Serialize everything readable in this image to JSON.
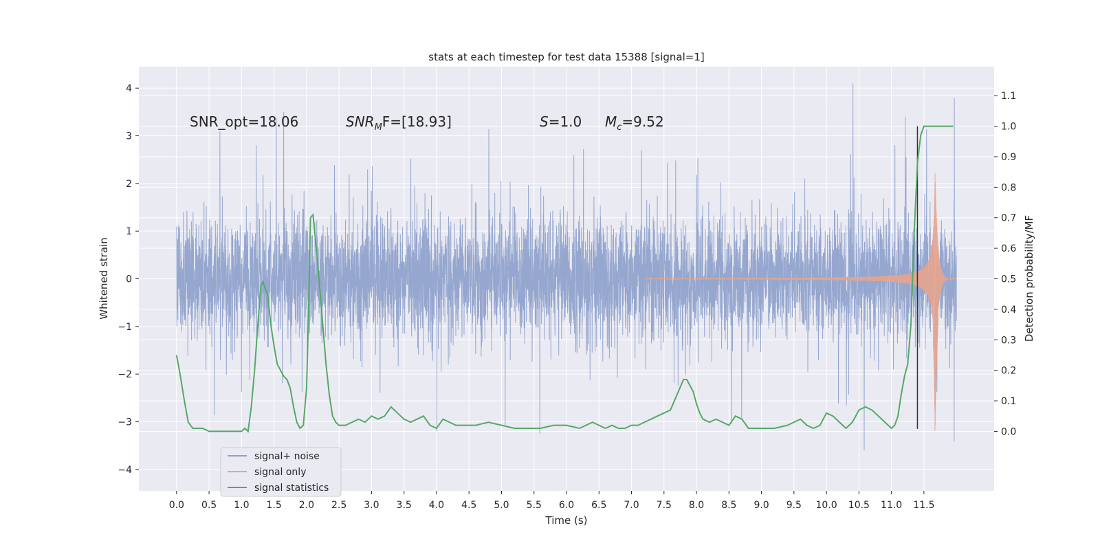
{
  "chart_data": {
    "type": "line",
    "title": "stats at each timestep for test data 15388 [signal=1]",
    "xlabel": "Time (s)",
    "ylabel_left": "Whitened strain",
    "ylabel_right": "Detection probability/MF",
    "xlim": [
      -0.58,
      12.58
    ],
    "ylim_left": [
      -4.45,
      4.45
    ],
    "ylim_right": [
      -0.195,
      1.195
    ],
    "x_ticks": [
      0.0,
      0.5,
      1.0,
      1.5,
      2.0,
      2.5,
      3.0,
      3.5,
      4.0,
      4.5,
      5.0,
      5.5,
      6.0,
      6.5,
      7.0,
      7.5,
      8.0,
      8.5,
      9.0,
      9.5,
      10.0,
      10.5,
      11.0,
      11.5
    ],
    "x_tick_labels": [
      "0.0",
      "0.5",
      "1.0",
      "1.5",
      "2.0",
      "2.5",
      "3.0",
      "3.5",
      "4.0",
      "4.5",
      "5.0",
      "5.5",
      "6.0",
      "6.5",
      "7.0",
      "7.5",
      "8.0",
      "8.5",
      "9.0",
      "9.5",
      "10.0",
      "10.5",
      "11.0",
      "11.5"
    ],
    "y_left_ticks": [
      -4,
      -3,
      -2,
      -1,
      0,
      1,
      2,
      3,
      4
    ],
    "y_left_tick_labels": [
      "−4",
      "−3",
      "−2",
      "−1",
      "0",
      "1",
      "2",
      "3",
      "4"
    ],
    "y_right_ticks": [
      0.0,
      0.1,
      0.2,
      0.3,
      0.4,
      0.5,
      0.6,
      0.7,
      0.8,
      0.9,
      1.0,
      1.1
    ],
    "y_right_tick_labels": [
      "0.0",
      "0.1",
      "0.2",
      "0.3",
      "0.4",
      "0.5",
      "0.6",
      "0.7",
      "0.8",
      "0.9",
      "1.0",
      "1.1"
    ],
    "grid": true,
    "legend_placement": "lower-left",
    "annotations": {
      "snr_opt": "SNR_opt=18.06",
      "snr_mf_main": "SNR",
      "snr_mf_sub": "M",
      "snr_mf_rest": "F=[18.93]",
      "s_var": "S",
      "s_rest": "=1.0",
      "mc_main": "M",
      "mc_sub": "c",
      "mc_rest": "=9.52"
    },
    "merger_marker_x": 11.4,
    "series": [
      {
        "name": "signal+ noise",
        "color": "#8da0cb",
        "t_range": [
          0.0,
          12.0
        ],
        "envelope_sigma": 0.62
      },
      {
        "name": "signal only",
        "color": "#e5a48d",
        "chirp": {
          "t_start": 7.2,
          "t_peak": 11.67,
          "t_end": 11.72,
          "peak_amp": 2.3,
          "min_amp": -3.4,
          "ringdown_end": 12.0
        }
      },
      {
        "name": "signal statistics",
        "color": "#55a868",
        "x": [
          0.0,
          0.06,
          0.12,
          0.18,
          0.25,
          0.3,
          0.4,
          0.5,
          0.6,
          0.7,
          0.8,
          0.9,
          1.0,
          1.05,
          1.1,
          1.15,
          1.2,
          1.25,
          1.3,
          1.33,
          1.36,
          1.4,
          1.45,
          1.5,
          1.55,
          1.6,
          1.65,
          1.7,
          1.75,
          1.8,
          1.85,
          1.9,
          1.95,
          2.0,
          2.03,
          2.06,
          2.1,
          2.15,
          2.2,
          2.25,
          2.3,
          2.35,
          2.4,
          2.45,
          2.5,
          2.6,
          2.7,
          2.8,
          2.9,
          3.0,
          3.1,
          3.2,
          3.3,
          3.4,
          3.5,
          3.6,
          3.7,
          3.8,
          3.9,
          4.0,
          4.1,
          4.2,
          4.3,
          4.4,
          4.6,
          4.8,
          5.0,
          5.2,
          5.4,
          5.6,
          5.8,
          6.0,
          6.2,
          6.3,
          6.4,
          6.5,
          6.6,
          6.7,
          6.8,
          6.9,
          7.0,
          7.1,
          7.2,
          7.3,
          7.4,
          7.5,
          7.6,
          7.7,
          7.8,
          7.85,
          7.9,
          7.95,
          8.0,
          8.05,
          8.1,
          8.2,
          8.3,
          8.4,
          8.5,
          8.6,
          8.7,
          8.8,
          8.9,
          9.0,
          9.2,
          9.4,
          9.5,
          9.6,
          9.7,
          9.8,
          9.9,
          10.0,
          10.1,
          10.2,
          10.3,
          10.4,
          10.5,
          10.6,
          10.7,
          10.8,
          10.9,
          11.0,
          11.05,
          11.1,
          11.15,
          11.2,
          11.25,
          11.3,
          11.35,
          11.4,
          11.45,
          11.5,
          11.6,
          11.8,
          11.95
        ],
        "y": [
          0.25,
          0.18,
          0.1,
          0.03,
          0.01,
          0.01,
          0.01,
          0.0,
          0.0,
          0.0,
          0.0,
          0.0,
          0.0,
          0.01,
          0.0,
          0.08,
          0.2,
          0.35,
          0.48,
          0.49,
          0.47,
          0.45,
          0.35,
          0.28,
          0.22,
          0.2,
          0.18,
          0.17,
          0.14,
          0.08,
          0.03,
          0.01,
          0.02,
          0.14,
          0.38,
          0.7,
          0.71,
          0.6,
          0.48,
          0.35,
          0.22,
          0.12,
          0.05,
          0.03,
          0.02,
          0.02,
          0.03,
          0.04,
          0.03,
          0.05,
          0.04,
          0.05,
          0.08,
          0.06,
          0.04,
          0.03,
          0.04,
          0.05,
          0.02,
          0.01,
          0.04,
          0.03,
          0.02,
          0.02,
          0.02,
          0.03,
          0.02,
          0.01,
          0.01,
          0.01,
          0.02,
          0.02,
          0.01,
          0.02,
          0.03,
          0.02,
          0.01,
          0.02,
          0.01,
          0.01,
          0.02,
          0.02,
          0.03,
          0.04,
          0.05,
          0.06,
          0.07,
          0.12,
          0.17,
          0.17,
          0.15,
          0.13,
          0.09,
          0.06,
          0.04,
          0.03,
          0.04,
          0.03,
          0.02,
          0.05,
          0.04,
          0.01,
          0.01,
          0.01,
          0.01,
          0.02,
          0.03,
          0.04,
          0.02,
          0.01,
          0.02,
          0.06,
          0.05,
          0.03,
          0.01,
          0.03,
          0.07,
          0.08,
          0.07,
          0.05,
          0.03,
          0.01,
          0.02,
          0.05,
          0.12,
          0.18,
          0.22,
          0.35,
          0.65,
          0.88,
          0.97,
          1.0,
          1.0,
          1.0,
          1.0
        ]
      }
    ]
  }
}
